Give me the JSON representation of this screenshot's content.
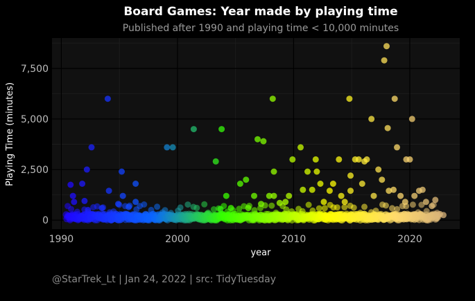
{
  "chart_data": {
    "type": "scatter",
    "title": "Board Games: Year made by playing time",
    "subtitle": "Published after 1990 and playing time < 10,000 minutes",
    "xlabel": "year",
    "ylabel": "Playing Time (minutes)",
    "caption": "@StarTrek_Lt | Jan 24, 2022 | src: TidyTuesday",
    "xlim": [
      1989.2,
      2024.3
    ],
    "ylim": [
      -440,
      9000
    ],
    "xticks": [
      1990,
      2000,
      2010,
      2020
    ],
    "xtick_labels": [
      "1990",
      "2000",
      "2010",
      "2020"
    ],
    "yticks": [
      0,
      2500,
      5000,
      7500
    ],
    "ytick_labels": [
      "0",
      "2,500",
      "5,000",
      "7,500"
    ],
    "grid": true,
    "legend": "none",
    "colors": {
      "background": "#000000",
      "panel": "#111111",
      "grid_major": "#000000",
      "grid_minor": "#1c1c1c",
      "title": "#ffffff",
      "subtitle": "#9a9a9a",
      "caption": "#8a8a8a",
      "axis_text": "#bdbdbd",
      "color_by_year": [
        "#2200ff",
        "#0b66ff",
        "#36ff00",
        "#ffff00",
        "#ffda6e",
        "#d7b27a"
      ]
    },
    "bulk_band": {
      "note": "dense cloud of points near zero across all years",
      "x_range": [
        1990.5,
        2022.5
      ],
      "y_range": [
        0,
        300
      ]
    },
    "points": [
      [
        1990.8,
        1750
      ],
      [
        1991.0,
        1200
      ],
      [
        1991.1,
        900
      ],
      [
        1991.8,
        1800
      ],
      [
        1992.2,
        2500
      ],
      [
        1992.0,
        950
      ],
      [
        1992.6,
        3600
      ],
      [
        1992.3,
        500
      ],
      [
        1993.5,
        600
      ],
      [
        1994.0,
        6000
      ],
      [
        1994.1,
        1450
      ],
      [
        1994.9,
        800
      ],
      [
        1995.2,
        2400
      ],
      [
        1995.3,
        1200
      ],
      [
        1995.8,
        650
      ],
      [
        1996.4,
        1800
      ],
      [
        1996.4,
        900
      ],
      [
        1999.1,
        3600
      ],
      [
        1999.6,
        3600
      ],
      [
        2001.4,
        4500
      ],
      [
        2003.3,
        2900
      ],
      [
        2003.7,
        550
      ],
      [
        2003.8,
        4500
      ],
      [
        2004.2,
        1200
      ],
      [
        2004.6,
        600
      ],
      [
        2005.4,
        1800
      ],
      [
        2005.9,
        2000
      ],
      [
        2006.1,
        600
      ],
      [
        2006.6,
        1200
      ],
      [
        2006.9,
        4000
      ],
      [
        2007.2,
        800
      ],
      [
        2007.4,
        3900
      ],
      [
        2007.9,
        1200
      ],
      [
        2008.2,
        6000
      ],
      [
        2008.3,
        2400
      ],
      [
        2008.3,
        1200
      ],
      [
        2008.8,
        850
      ],
      [
        2009.3,
        900
      ],
      [
        2009.6,
        1200
      ],
      [
        2009.9,
        3000
      ],
      [
        2010.6,
        3600
      ],
      [
        2010.8,
        1500
      ],
      [
        2011.2,
        2400
      ],
      [
        2011.6,
        1500
      ],
      [
        2011.9,
        3000
      ],
      [
        2012.0,
        2400
      ],
      [
        2012.3,
        1800
      ],
      [
        2012.6,
        900
      ],
      [
        2013.1,
        1450
      ],
      [
        2013.4,
        1800
      ],
      [
        2013.9,
        3000
      ],
      [
        2014.1,
        1200
      ],
      [
        2014.4,
        900
      ],
      [
        2014.8,
        6000
      ],
      [
        2014.9,
        2200
      ],
      [
        2014.9,
        1450
      ],
      [
        2015.3,
        3000
      ],
      [
        2015.6,
        3000
      ],
      [
        2015.9,
        1800
      ],
      [
        2016.1,
        2900
      ],
      [
        2016.3,
        3000
      ],
      [
        2016.7,
        5000
      ],
      [
        2016.9,
        1200
      ],
      [
        2017.3,
        2500
      ],
      [
        2017.6,
        2000
      ],
      [
        2017.8,
        7900
      ],
      [
        2018.0,
        8600
      ],
      [
        2018.1,
        4550
      ],
      [
        2018.2,
        1450
      ],
      [
        2018.6,
        1500
      ],
      [
        2018.7,
        6000
      ],
      [
        2018.9,
        3600
      ],
      [
        2019.2,
        1200
      ],
      [
        2019.6,
        900
      ],
      [
        2019.7,
        3000
      ],
      [
        2020.0,
        3000
      ],
      [
        2020.2,
        5000
      ],
      [
        2020.4,
        1200
      ],
      [
        2020.8,
        1450
      ],
      [
        2021.1,
        1500
      ],
      [
        2021.4,
        900
      ],
      [
        2021.9,
        700
      ],
      [
        2022.2,
        1000
      ],
      [
        2022.6,
        300
      ],
      [
        2022.9,
        250
      ]
    ]
  }
}
